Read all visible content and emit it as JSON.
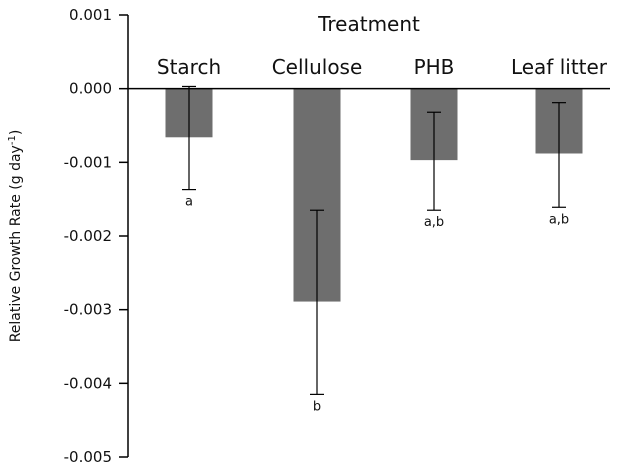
{
  "chart_data": {
    "type": "bar",
    "title": "Treatment",
    "ylabel": "Relative Growth Rate (g day-1)",
    "ylabel_main": "Relative Growth Rate (g day",
    "ylabel_sup": "-1",
    "ylabel_close": ")",
    "xlabel": "",
    "ylim": [
      -0.005,
      0.001
    ],
    "yticks": [
      0.001,
      0.0,
      -0.001,
      -0.002,
      -0.003,
      -0.004,
      -0.005
    ],
    "ytick_labels": [
      "0.001",
      "0.000",
      "-0.001",
      "-0.002",
      "-0.003",
      "-0.004",
      "-0.005"
    ],
    "grid": false,
    "bar_color": "#6e6e6e",
    "categories": [
      "Starch",
      "Cellulose",
      "PHB",
      "Leaf litter"
    ],
    "values": [
      -0.00066,
      -0.00289,
      -0.00097,
      -0.00088
    ],
    "error_low": [
      -0.00137,
      -0.00415,
      -0.00165,
      -0.00161
    ],
    "error_high": [
      3e-05,
      -0.00165,
      -0.00032,
      -0.00019
    ],
    "significance": [
      "a",
      "b",
      "a,b",
      "a,b"
    ]
  }
}
